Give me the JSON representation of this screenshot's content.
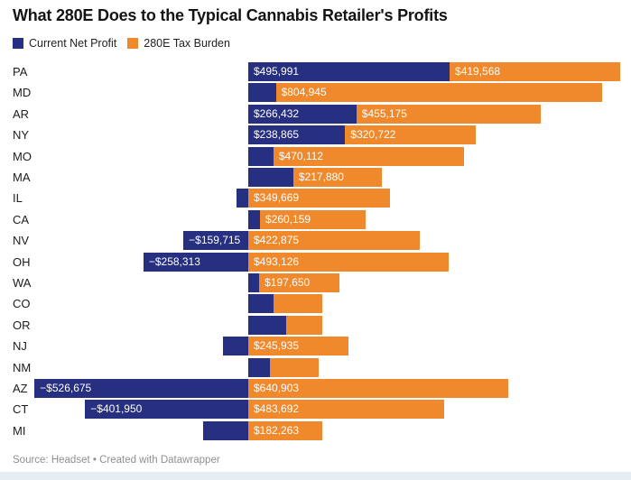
{
  "header": {
    "title": "What 280E Does to the Typical Cannabis Retailer's Profits"
  },
  "legend": {
    "items": [
      {
        "label": "Current Net Profit",
        "color": "#262f80"
      },
      {
        "label": "280E Tax Burden",
        "color": "#f0892c"
      }
    ]
  },
  "footer": {
    "source": "Source: Headset • Created with Datawrapper"
  },
  "chart_data": {
    "type": "bar",
    "orientation": "horizontal",
    "stacked": true,
    "title": "What 280E Does to the Typical Cannabis Retailer's Profits",
    "series_names": [
      "Current Net Profit",
      "280E Tax Burden"
    ],
    "colors": {
      "current_net_profit": "#262f80",
      "tax_burden_280e": "#f0892c"
    },
    "legend_position": "top-left",
    "grid": false,
    "value_axis_visible": false,
    "value_labels": "inside-bar-start",
    "xlim_dollars": [
      -612000,
      943000
    ],
    "categories": [
      "PA",
      "MD",
      "AR",
      "NY",
      "MO",
      "MA",
      "IL",
      "CA",
      "NV",
      "OH",
      "WA",
      "CO",
      "OR",
      "NJ",
      "NM",
      "AZ",
      "CT",
      "MI"
    ],
    "rows": [
      {
        "state": "PA",
        "net_profit": 495991,
        "tax_burden": 419568,
        "net_label": "$495,991",
        "tax_label": "$419,568"
      },
      {
        "state": "MD",
        "net_profit": 68000,
        "tax_burden": 804945,
        "net_label": "",
        "tax_label": "$804,945"
      },
      {
        "state": "AR",
        "net_profit": 266432,
        "tax_burden": 455175,
        "net_label": "$266,432",
        "tax_label": "$455,175"
      },
      {
        "state": "NY",
        "net_profit": 238865,
        "tax_burden": 320722,
        "net_label": "$238,865",
        "tax_label": "$320,722"
      },
      {
        "state": "MO",
        "net_profit": 62000,
        "tax_burden": 470112,
        "net_label": "",
        "tax_label": "$470,112"
      },
      {
        "state": "MA",
        "net_profit": 111000,
        "tax_burden": 217880,
        "net_label": "",
        "tax_label": "$217,880"
      },
      {
        "state": "IL",
        "net_profit": -29000,
        "tax_burden": 349669,
        "net_label": "",
        "tax_label": "$349,669"
      },
      {
        "state": "CA",
        "net_profit": 29000,
        "tax_burden": 260159,
        "net_label": "",
        "tax_label": "$260,159"
      },
      {
        "state": "NV",
        "net_profit": -159715,
        "tax_burden": 422875,
        "net_label": "−$159,715",
        "tax_label": "$422,875"
      },
      {
        "state": "OH",
        "net_profit": -258313,
        "tax_burden": 493126,
        "net_label": "−$258,313",
        "tax_label": "$493,126"
      },
      {
        "state": "WA",
        "net_profit": 27000,
        "tax_burden": 197650,
        "net_label": "",
        "tax_label": "$197,650"
      },
      {
        "state": "CO",
        "net_profit": 62000,
        "tax_burden": 120000,
        "net_label": "",
        "tax_label": ""
      },
      {
        "state": "OR",
        "net_profit": 93000,
        "tax_burden": 89000,
        "net_label": "",
        "tax_label": ""
      },
      {
        "state": "NJ",
        "net_profit": -62000,
        "tax_burden": 245935,
        "net_label": "",
        "tax_label": "$245,935"
      },
      {
        "state": "NM",
        "net_profit": 53000,
        "tax_burden": 120000,
        "net_label": "",
        "tax_label": ""
      },
      {
        "state": "AZ",
        "net_profit": -526675,
        "tax_burden": 640903,
        "net_label": "−$526,675",
        "tax_label": "$640,903"
      },
      {
        "state": "CT",
        "net_profit": -401950,
        "tax_burden": 483692,
        "net_label": "−$401,950",
        "tax_label": "$483,692"
      },
      {
        "state": "MI",
        "net_profit": -112000,
        "tax_burden": 182263,
        "net_label": "",
        "tax_label": "$182,263"
      }
    ]
  }
}
